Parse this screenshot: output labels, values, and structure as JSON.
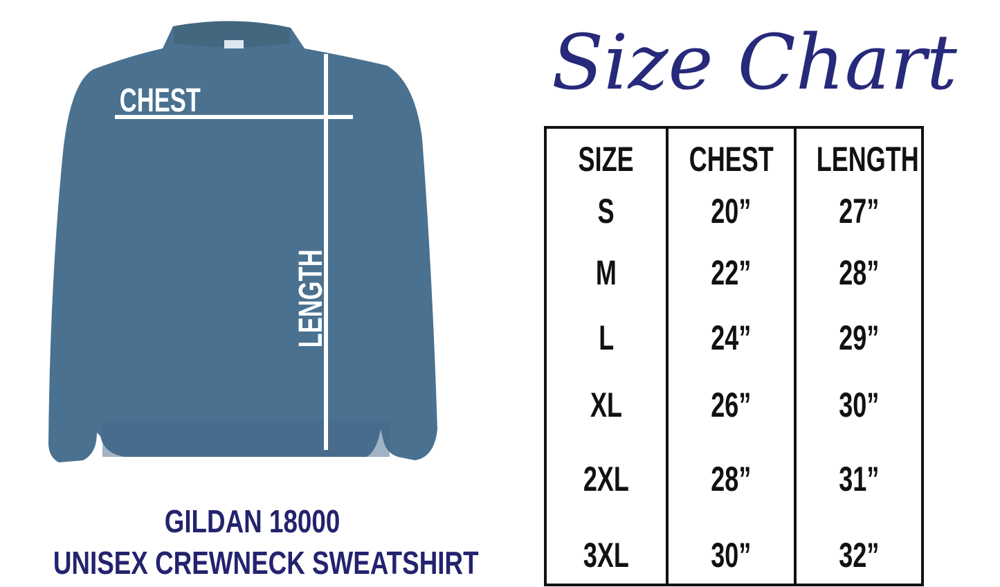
{
  "title": "Size Chart",
  "garment": {
    "chest_label": "CHEST",
    "length_label": "LENGTH",
    "color": "#4a7190",
    "brand_line": "GILDAN 18000",
    "product_line": "UNISEX CREWNECK SWEATSHIRT"
  },
  "table": {
    "headers": [
      "SIZE",
      "CHEST",
      "LENGTH"
    ],
    "rows": [
      [
        "S",
        "20”",
        "27”"
      ],
      [
        "M",
        "22”",
        "28”"
      ],
      [
        "L",
        "24”",
        "29”"
      ],
      [
        "XL",
        "26”",
        "30”"
      ],
      [
        "2XL",
        "28”",
        "31”"
      ],
      [
        "3XL",
        "30”",
        "32”"
      ]
    ]
  },
  "colors": {
    "title": "#27297a",
    "caption": "#23236e",
    "shirt": "#4a7190"
  }
}
